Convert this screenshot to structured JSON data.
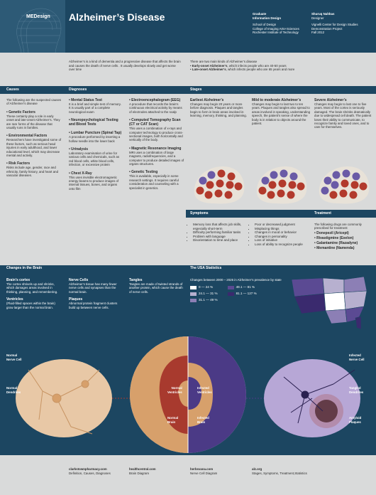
{
  "header": {
    "logo": "MEDesign",
    "title": "Alzheimer’s Disease",
    "col1": [
      "Graduate",
      "Information Design"
    ],
    "col1b": [
      "School of Design",
      "College of Imaging Arts+Sciences",
      "Rochester Institute of Technology"
    ],
    "col2": [
      "Shuruq Nahhas",
      "Designer"
    ],
    "col2b": [
      "Vignelli Center for Design Studies",
      "Demonstration Project",
      "Fall 2012"
    ]
  },
  "intro": {
    "left": "Alzheimer’s is a kind of dementia and a progressive disease that affects the brain and causes the death of nerve cells . It usually develops slowly and get worse over time",
    "right_lead": "There are two main kinds of Alzheimer’s disease",
    "right_items": [
      {
        "title": "Early-onset Alzheimer’s",
        "text": ", which infects people who are 40-50 years"
      },
      {
        "title": "Late-onset Alzheimer’s",
        "text": ", which infects people who are 65 years and more"
      }
    ]
  },
  "sections": {
    "causes": "Causes",
    "diagnoses": "Diagnoses",
    "stages": "Stages",
    "symptoms": "Symptoms",
    "treatment": "Treatment",
    "brain": "Changes in the Brain",
    "usa": "The USA Statistics"
  },
  "causes": {
    "intro": "The following are the suspected causes of Alzheimer’s disease",
    "items": [
      {
        "title": "Genetic Factors",
        "text": "These certainly play a role in early onset and late-onset Alzheimer’s. They are rare forms of the disease that usually runs in families."
      },
      {
        "title": "Environmental Factors",
        "text": "Researchers have investigated some of these factors, such as serious head injuries in early adulthood, and lower educational level, which may decrease mental and activity."
      },
      {
        "title": "Risk Factors",
        "text": "Risks include age, gender, race and ethnicity, family history, and heart and vascular diseases."
      }
    ]
  },
  "diagnoses": {
    "col1": [
      {
        "title": "Mental Status Test",
        "text": "It is a brief and simple test of memory. It is usually part of a complete neurological exam"
      },
      {
        "title": "Neuropsychological Testing and Blood Tests",
        "text": ""
      },
      {
        "title": "Lumbar Puncture (Spinal Tap)",
        "text": "A procedure performed by inserting a hollow needle into the lower back"
      },
      {
        "title": "Urinalysis",
        "text": "Laboratory examination of urine for various cells and chemicals, such as red blood cells, white blood cells, infection, or excessive protein"
      },
      {
        "title": "Chest X-Ray",
        "text": "This uses invisible electromagnetic energy beams to produce images of internal tissues, bones, and organs onto film"
      }
    ],
    "col2": [
      {
        "title": "Electroencephalogram (EEG)",
        "text": "A procedure that records the brain’s continuous electrical activity by means of electrodes attached to the scalp"
      },
      {
        "title": "Computed Tomography Scan (CT or CAT Scan)",
        "text": "This uses a combination of x-rays and computer technology to produce cross-sectional images, both horizontally and vertically of the body."
      },
      {
        "title": "Magnetic Resonance Imaging",
        "text": "MRI uses a combination of large magnets, radiofrequencies, and a computer to produce detailed images of organs structures."
      },
      {
        "title": "Genetic Testing",
        "text": "This is available, especially in some research settings. It requires careful consideration and counseling with a specialist in genetics."
      }
    ]
  },
  "stages": [
    {
      "title": "Earliest Alzheimer’s",
      "text": "Changes may begin 20 years or more before diagnosis. Plaques and tangles begin to form in brain areas involved in learning, memory, thinking, and planning."
    },
    {
      "title": "Mild to moderate Alzheimer’s",
      "text": "Changes may begin to last two to ten years. Plaques and tangles also spread to areas involved in speaking, understanding speech, the patient’s sense of where the body is in relation to objects around the patient."
    },
    {
      "title": "Severe Alzheimer’s",
      "text": "Changes may begin to last one to five years. Most of the cortex is seriously damaged. The brain shrinks dramatically due to widespread cell death. The patient loses their ability to communicate, to recognize family and loved ones, and to care for themselves."
    }
  ],
  "symptoms": {
    "col1": [
      "Memory loss that affects job skills, especially short-term",
      "Difficulty performing familiar tasks",
      "Problem with language",
      "Disorientation to time and place"
    ],
    "col2": [
      "Poor or decreased judgment",
      "Misplacing things",
      "Changes in mood or behavior",
      "Changes in personality",
      "Loss of initiative",
      "Loss of ability to recognize people"
    ]
  },
  "treatment": {
    "intro": "The following drugs are commonly prescribed for treatment",
    "items": [
      "Donepezil (Aricept)",
      "Rivastigmine (Exelon)",
      "Galantamine (Razadyne)",
      "Memantine (Namenda)"
    ]
  },
  "brain_changes": [
    {
      "title": "Brain’s cortex",
      "text": "The cortex shrivels up and shrinks, which damages areas involved in thinking, planning, and remembering."
    },
    {
      "title": "Ventricles",
      "text": "(Fluid-filled spaces within the brain) grow larger than the normal brain."
    },
    {
      "title": "Nerve Cells",
      "text": "Alzheimer’s tissue has many fewer nerve cells and synapses than the normal brain."
    },
    {
      "title": "Plaques",
      "text": "Abnormal protein fragment clusters build up between nerve cells."
    },
    {
      "title": "Tangles",
      "text": "Tangles are made of twisted strands of another protein, which cause the death of nerve cells."
    }
  ],
  "usa": {
    "heading": "Changes between 2000 – 2025 in Alzheimer’s prevalence by state",
    "legend": [
      {
        "label": "0 — 24 %",
        "color": "#ffffff"
      },
      {
        "label": "24.1 — 31 %",
        "color": "#b7b0cf"
      },
      {
        "label": "31.1 — 49 %",
        "color": "#8c7fb5"
      },
      {
        "label": "49.1 — 81 %",
        "color": "#5b4a93"
      },
      {
        "label": "81.1 — 127 %",
        "color": "#3a2a6e"
      }
    ]
  },
  "diagram_labels": {
    "normal_nerve": [
      "Normal",
      "Nerve Cell"
    ],
    "normal_dendrites": [
      "Normal",
      "Dendrites"
    ],
    "normal_ventricles": [
      "Normal",
      "Ventricles"
    ],
    "normal_brain": [
      "Normal",
      "Brain"
    ],
    "infected_ventricles": [
      "Infected",
      "Ventricles"
    ],
    "infected_brain": [
      "Infected",
      "Brain"
    ],
    "infected_nerve": [
      "Infected",
      "Nerve Cell"
    ],
    "tangled_dendrites": [
      "Tangled",
      "Dendrites"
    ],
    "amyloid_plaques": [
      "Amyloid",
      "Plaques"
    ]
  },
  "footer": [
    {
      "site": "clarkstownpharmacy.com",
      "desc": "Definition, Causes, Diagnoses"
    },
    {
      "site": "healthcentral.com",
      "desc": "Brain Diagram"
    },
    {
      "site": "herbsvana.com",
      "desc": "Nerve Cell Diagram"
    },
    {
      "site": "alz.org",
      "desc": "Stages, Symptoms, Treatment,Statistics"
    }
  ],
  "colors": {
    "navy": "#1c4661",
    "brain_tan": "#d7a06b",
    "brain_red": "#a83a2e",
    "purple": "#4b3a86",
    "peach": "#e8c8a6",
    "lavender": "#b7a7d6"
  }
}
